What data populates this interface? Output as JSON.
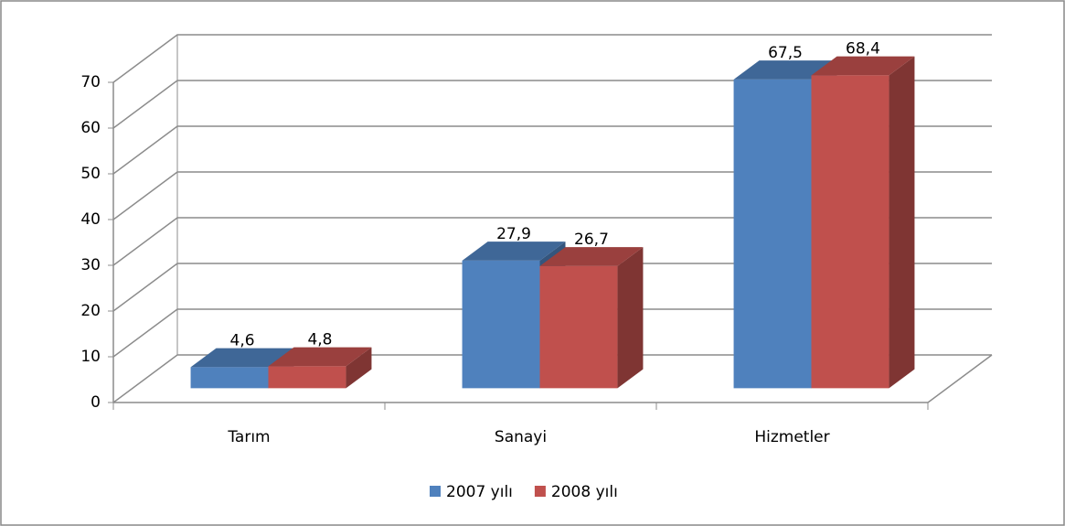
{
  "chart_data": {
    "type": "bar3d",
    "categories": [
      "Tarım",
      "Sanayi",
      "Hizmetler"
    ],
    "series": [
      {
        "name": "2007 yılı",
        "color": "#4f81bd",
        "values": [
          4.6,
          27.9,
          67.5
        ],
        "value_labels": [
          "4,6",
          "27,9",
          "67,5"
        ]
      },
      {
        "name": "2008 yılı",
        "color": "#c0504d",
        "values": [
          4.8,
          26.7,
          68.4
        ],
        "value_labels": [
          "4,8",
          "26,7",
          "68,4"
        ]
      }
    ],
    "ylim": [
      0,
      70
    ],
    "yticks": [
      0,
      10,
      20,
      30,
      40,
      50,
      60,
      70
    ],
    "grid": true,
    "legend": "bottom"
  }
}
